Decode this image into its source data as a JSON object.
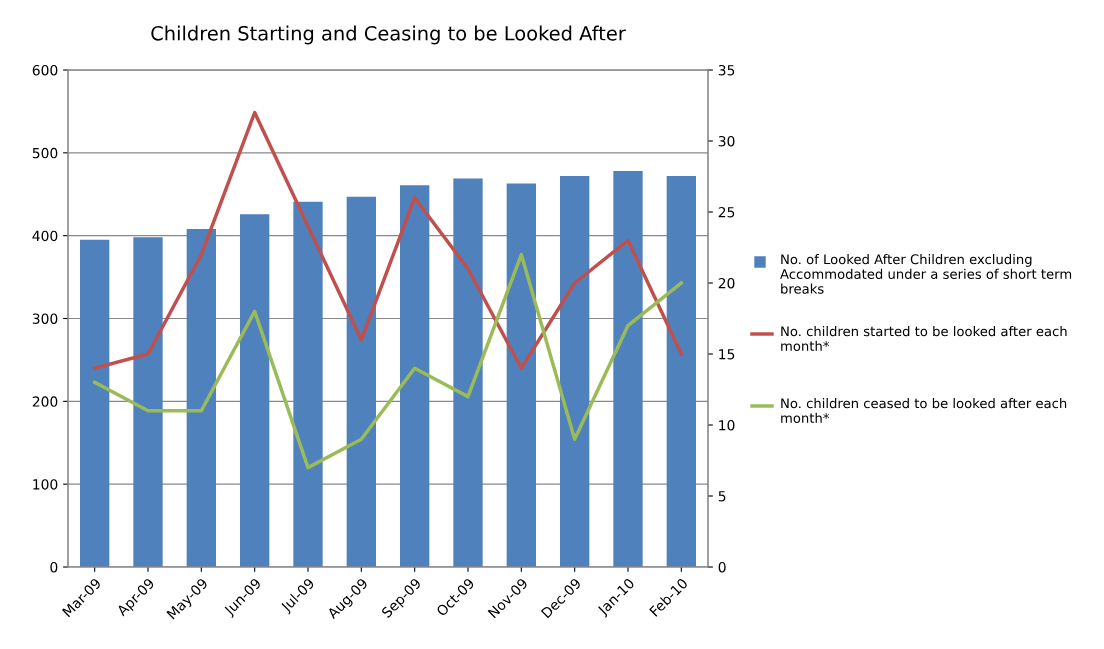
{
  "chart_data": {
    "type": "bar",
    "title": "Children Starting and Ceasing to be Looked After",
    "categories": [
      "Mar-09",
      "Apr-09",
      "May-09",
      "Jun-09",
      "Jul-09",
      "Aug-09",
      "Sep-09",
      "Oct-09",
      "Nov-09",
      "Dec-09",
      "Jan-10",
      "Feb-10"
    ],
    "series": [
      {
        "name": "No. of Looked After Children excluding Accommodated under a series of short term breaks",
        "color": "#4f81bd",
        "values": [
          395,
          398,
          408,
          426,
          441,
          447,
          461,
          469,
          463,
          472,
          478,
          472
        ]
      },
      {
        "name": "No. children started to be looked after each month*",
        "color": "#c0504d",
        "type": "line",
        "axis": "y2",
        "values": [
          14,
          15,
          22,
          32,
          24,
          16,
          26,
          21,
          14,
          20,
          23,
          15
        ]
      },
      {
        "name": "No. children ceased to be looked after each month*",
        "color": "#9bbb59",
        "type": "line",
        "axis": "y2",
        "values": [
          13,
          11,
          11,
          18,
          7,
          9,
          14,
          12,
          22,
          9,
          17,
          20
        ]
      }
    ],
    "ylim": [
      0,
      600
    ],
    "yticks": [
      0,
      100,
      200,
      300,
      400,
      500,
      600
    ],
    "y2lim": [
      0,
      35
    ],
    "y2ticks": [
      0,
      5,
      10,
      15,
      20,
      25,
      30,
      35
    ],
    "grid": "y",
    "legend": "right",
    "marker": "none",
    "line_style": "solid"
  }
}
